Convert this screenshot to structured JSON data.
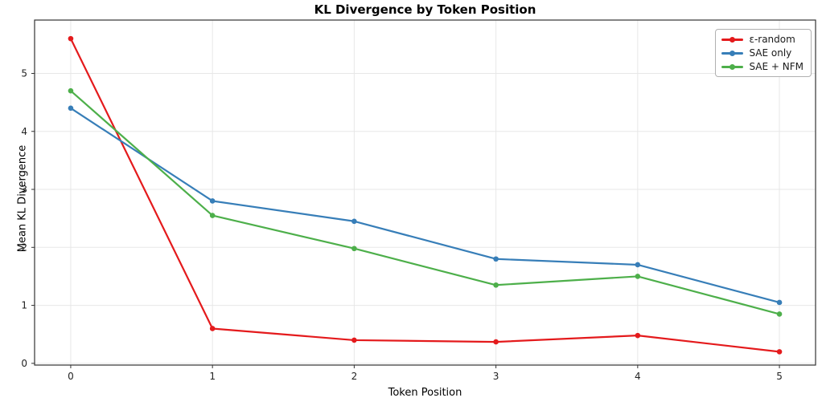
{
  "chart_data": {
    "type": "line",
    "title": "KL Divergence by Token Position",
    "xlabel": "Token Position",
    "ylabel": "Mean KL Divergence",
    "x": [
      0,
      1,
      2,
      3,
      4,
      5
    ],
    "xticks": [
      0,
      1,
      2,
      3,
      4,
      5
    ],
    "yticks": [
      0,
      1,
      2,
      3,
      4,
      5
    ],
    "xlim": [
      -0.255,
      5.255
    ],
    "ylim": [
      -0.03,
      5.92
    ],
    "grid": true,
    "legend_position": "upper right",
    "series": [
      {
        "name": "ε-random",
        "color": "#e41a1c",
        "values": [
          5.6,
          0.6,
          0.4,
          0.37,
          0.48,
          0.2
        ]
      },
      {
        "name": "SAE only",
        "color": "#377eb8",
        "values": [
          4.4,
          2.8,
          2.45,
          1.8,
          1.7,
          1.05
        ]
      },
      {
        "name": "SAE + NFM",
        "color": "#4daf4a",
        "values": [
          4.7,
          2.55,
          1.98,
          1.35,
          1.5,
          0.85
        ]
      }
    ],
    "colors": {
      "grid": "#e7e7e7",
      "spine": "#333333",
      "tick": "#333333",
      "tick_label": "#222222",
      "background": "#ffffff"
    }
  }
}
